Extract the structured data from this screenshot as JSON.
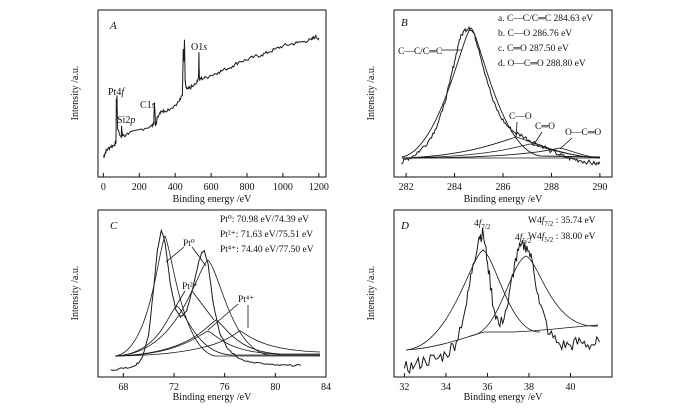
{
  "colors": {
    "axis": "#111111",
    "line": "#1a1a1a",
    "background": "#ffffff"
  },
  "chart_data": [
    {
      "panel": "A",
      "type": "line",
      "xlabel": "Binding energy /eV",
      "ylabel": "Intensity /a.u.",
      "xlim": [
        -30,
        1240
      ],
      "ylim": [
        0,
        100
      ],
      "xticks": [
        0,
        200,
        400,
        600,
        800,
        1000,
        1200
      ],
      "grid": false,
      "series": [
        {
          "x": [
            0,
            10,
            20,
            40,
            60,
            70,
            72,
            74,
            76,
            78,
            80,
            100,
            101,
            104,
            108,
            140,
            200,
            260,
            280,
            284,
            288,
            290,
            292,
            296,
            300,
            320,
            340,
            380,
            420,
            440,
            445,
            448,
            452,
            455,
            460,
            470,
            480,
            500,
            520,
            530,
            532,
            534,
            536,
            540,
            560,
            600,
            640,
            680,
            720,
            760,
            800,
            840,
            880,
            920,
            960,
            1000,
            1040,
            1080,
            1120,
            1160,
            1180,
            1200
          ],
          "y": [
            10,
            13,
            15,
            17,
            18,
            20,
            48,
            42,
            50,
            33,
            28,
            23,
            30,
            26,
            24,
            25,
            28,
            30,
            31,
            45,
            38,
            31,
            32,
            33,
            36,
            40,
            40,
            42,
            46,
            50,
            80,
            72,
            86,
            60,
            55,
            54,
            55,
            56,
            58,
            62,
            78,
            64,
            60,
            61,
            61,
            63,
            65,
            67,
            69,
            72,
            73,
            75,
            76,
            78,
            80,
            82,
            83,
            84,
            85,
            86,
            88,
            87
          ]
        }
      ],
      "annotations": [
        "Pt4f",
        "Si2p",
        "C1s",
        "O1s"
      ]
    },
    {
      "panel": "B",
      "type": "line",
      "xlabel": "Binding energy /eV",
      "ylabel": "Intensity /a.u.",
      "xlim": [
        281.5,
        290.5
      ],
      "ylim": [
        0,
        100
      ],
      "xticks": [
        282,
        284,
        286,
        288,
        290
      ],
      "grid": false,
      "legend": [
        "a. C—C/C═C 284.63 eV",
        "b. C—O 286.76 eV",
        "c. C═O 287.50 eV",
        "d. O—C═O 288.80 eV"
      ],
      "series": [
        {
          "x": [
            281.8,
            282.0,
            282.3,
            282.6,
            282.9,
            283.2,
            283.5,
            283.8,
            284.0,
            284.2,
            284.4,
            284.6,
            284.8,
            285.0,
            285.3,
            285.6,
            285.9,
            286.2,
            286.5,
            286.8,
            287.1,
            287.4,
            287.7,
            288.0,
            288.3,
            288.6,
            288.9,
            289.2,
            289.5,
            289.8,
            290.0
          ],
          "y": [
            6,
            9,
            11,
            15,
            20,
            28,
            40,
            58,
            72,
            86,
            92,
            94,
            90,
            80,
            62,
            46,
            36,
            30,
            26,
            24,
            21,
            19,
            17,
            14,
            12,
            10,
            9,
            8,
            7,
            6,
            6
          ]
        }
      ],
      "annotations": [
        "C—C/C═C",
        "C—O",
        "C═O",
        "O—C═O"
      ]
    },
    {
      "panel": "C",
      "type": "line",
      "xlabel": "Binding energy /eV",
      "ylabel": "Intensity /a.u.",
      "xlim": [
        66,
        84
      ],
      "ylim": [
        0,
        100
      ],
      "xticks": [
        68,
        72,
        76,
        80,
        84
      ],
      "grid": false,
      "legend": [
        "Pt⁰: 70.98 eV/74.39 eV",
        "Pt²⁺: 71.63 eV/75.51 eV",
        "Pt⁴⁺: 74.40 eV/77.50 eV"
      ],
      "series": [
        {
          "x": [
            67,
            68,
            69,
            69.5,
            70,
            70.4,
            70.7,
            71.0,
            71.3,
            71.7,
            72.1,
            72.5,
            73.0,
            73.5,
            73.9,
            74.2,
            74.4,
            74.7,
            75.1,
            75.6,
            76.2,
            77.0,
            78,
            79,
            80,
            81,
            82
          ],
          "y": [
            2,
            3,
            5,
            10,
            25,
            55,
            80,
            92,
            84,
            58,
            42,
            36,
            40,
            55,
            70,
            78,
            79,
            70,
            45,
            26,
            16,
            10,
            7,
            6,
            5,
            5,
            5
          ]
        }
      ],
      "annotations": [
        "Pt⁰",
        "Pt²⁺",
        "Pt⁴⁺"
      ]
    },
    {
      "panel": "D",
      "type": "line",
      "xlabel": "Binding energy /eV",
      "ylabel": "Intensity /a.u.",
      "xlim": [
        31.5,
        42
      ],
      "ylim": [
        0,
        100
      ],
      "xticks": [
        32,
        34,
        36,
        38,
        40
      ],
      "grid": false,
      "legend": [
        "W4f7/2 : 35.74 eV",
        "W4f5/2 : 38.00 eV"
      ],
      "series": [
        {
          "x": [
            32.0,
            32.5,
            33.0,
            33.5,
            34.0,
            34.5,
            35.0,
            35.3,
            35.6,
            35.8,
            36.0,
            36.3,
            36.6,
            37.0,
            37.3,
            37.6,
            37.9,
            38.2,
            38.5,
            39.0,
            39.5,
            40.0,
            40.5,
            41.0,
            41.4
          ],
          "y": [
            3,
            5,
            8,
            9,
            12,
            20,
            45,
            70,
            88,
            90,
            72,
            42,
            30,
            45,
            70,
            82,
            82,
            70,
            45,
            25,
            18,
            18,
            20,
            18,
            20
          ]
        }
      ],
      "annotations": [
        "4f7/2",
        "4f5/2"
      ]
    }
  ]
}
